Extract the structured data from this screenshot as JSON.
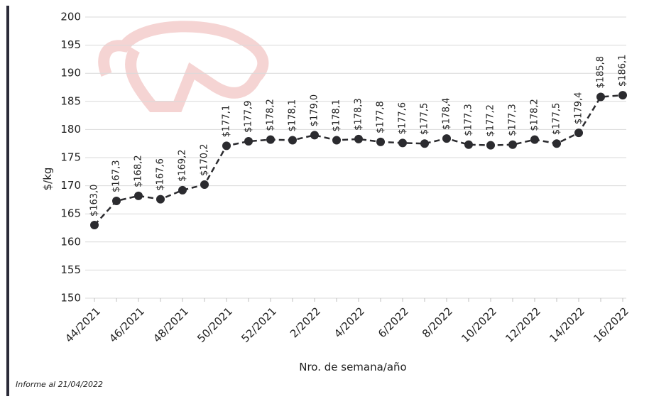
{
  "chart_data": {
    "type": "line",
    "categories": [
      "44/2021",
      null,
      "46/2021",
      null,
      "48/2021",
      null,
      "50/2021",
      null,
      "52/2021",
      null,
      "2/2022",
      null,
      "4/2022",
      null,
      "6/2022",
      null,
      "8/2022",
      null,
      "10/2022",
      null,
      "12/2022",
      null,
      "14/2022",
      null,
      "16/2022"
    ],
    "values": [
      163.0,
      167.3,
      168.2,
      167.6,
      169.2,
      170.2,
      177.1,
      177.9,
      178.2,
      178.1,
      179.0,
      178.1,
      178.3,
      177.8,
      177.6,
      177.5,
      178.4,
      177.3,
      177.2,
      177.3,
      178.2,
      177.5,
      179.4,
      185.8,
      186.1
    ],
    "value_labels": [
      "$163,0",
      "$167,3",
      "$168,2",
      "$167,6",
      "$169,2",
      "$170,2",
      "$177,1",
      "$177,9",
      "$178,2",
      "$178,1",
      "$179,0",
      "$178,1",
      "$178,3",
      "$177,8",
      "$177,6",
      "$177,5",
      "$178,4",
      "$177,3",
      "$177,2",
      "$177,3",
      "$178,2",
      "$177,5",
      "$179,4",
      "$185,8",
      "$186,1"
    ],
    "color": "#2b2b2f",
    "ylim": [
      150,
      200
    ],
    "yticks": [
      150,
      155,
      160,
      165,
      170,
      175,
      180,
      185,
      190,
      195,
      200
    ],
    "grid": true,
    "ylabel": "$/kg",
    "xlabel": "Nro. de semana/año",
    "note": "Informe al 21/04/2022"
  }
}
